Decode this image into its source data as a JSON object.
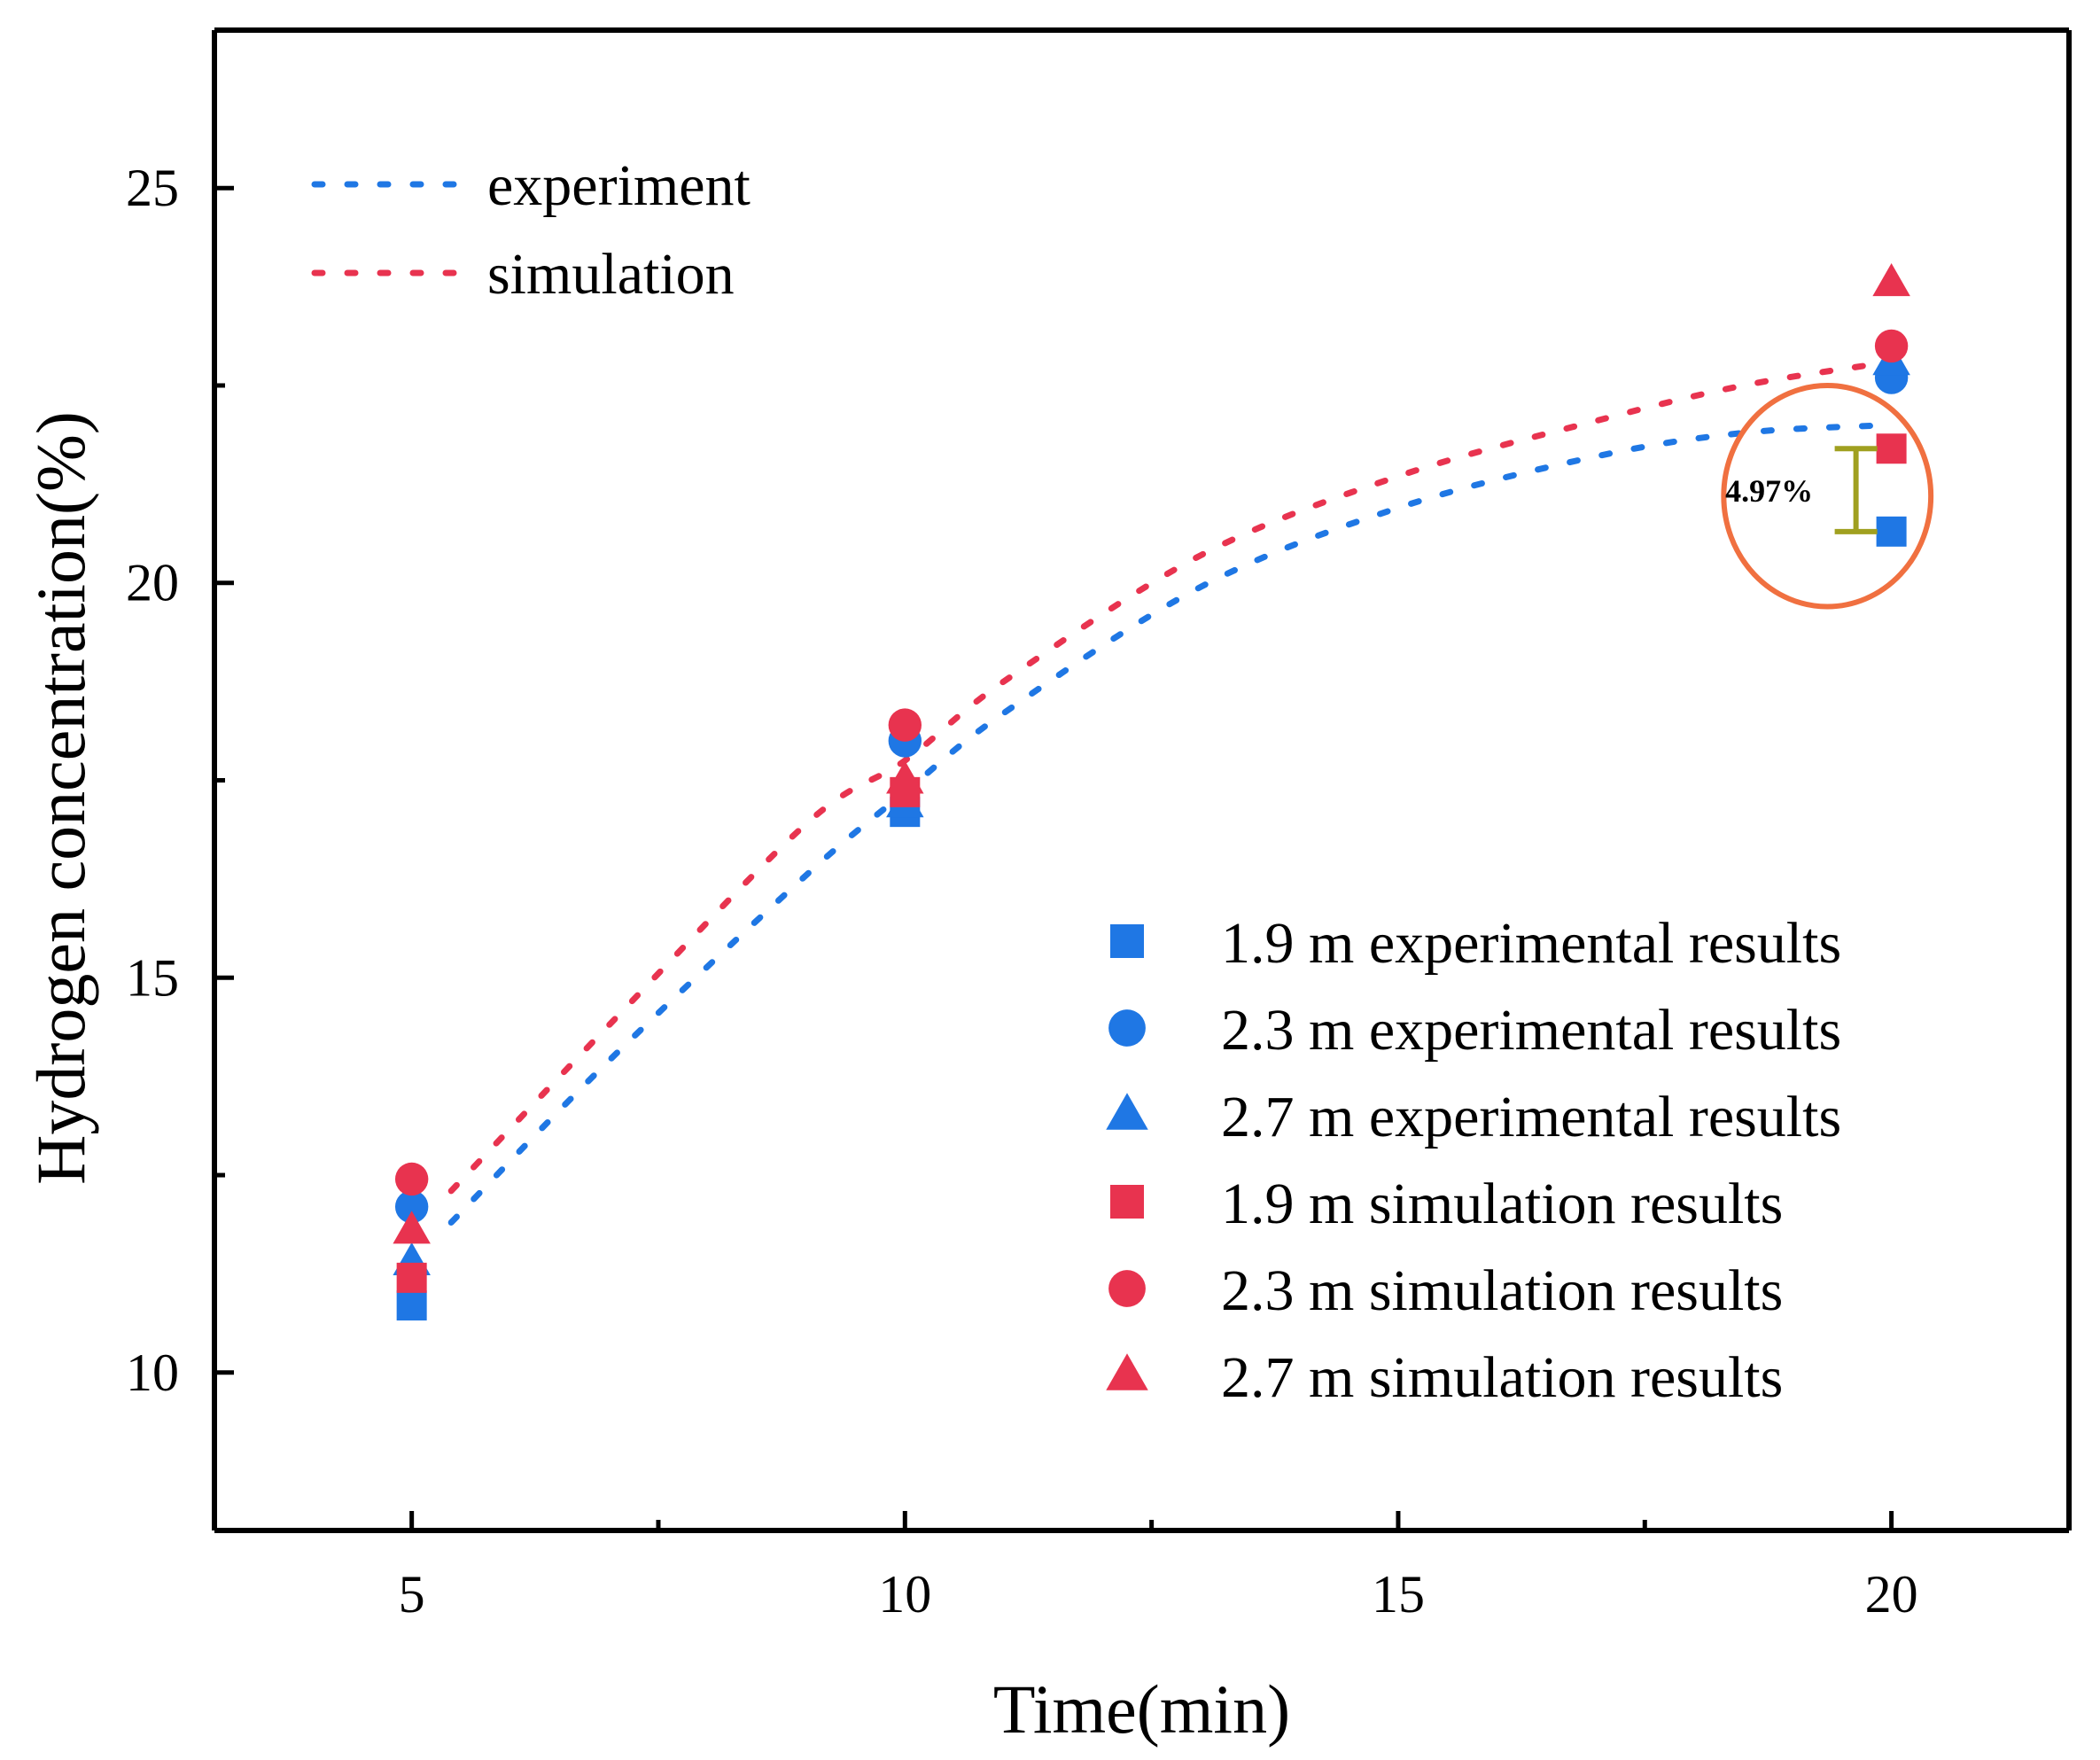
{
  "chart_data": {
    "type": "scatter",
    "xlabel": "Time(min)",
    "ylabel": "Hydrogen concentration(%)",
    "xlim": [
      3,
      21.8
    ],
    "ylim": [
      8,
      27
    ],
    "xticks": [
      5,
      10,
      15,
      20
    ],
    "xtick_labels": [
      "5",
      "10",
      "15",
      "20"
    ],
    "xminor": [
      7.5,
      12.5,
      17.5
    ],
    "yticks": [
      10,
      15,
      20,
      25
    ],
    "ytick_labels": [
      "10",
      "15",
      "20",
      "25"
    ],
    "yminor": [
      12.5,
      17.5,
      22.5
    ],
    "colors": {
      "experiment": "#1f77e4",
      "simulation": "#e8334f",
      "highlight": "#f07040",
      "bracket": "#a0a020"
    },
    "series": [
      {
        "name": "1.9 m experimental results",
        "group": "experiment",
        "marker": "square",
        "x": [
          5,
          10,
          20
        ],
        "y": [
          10.85,
          17.1,
          20.65
        ]
      },
      {
        "name": "2.3 m experimental results",
        "group": "experiment",
        "marker": "circle",
        "x": [
          5,
          10,
          20
        ],
        "y": [
          12.1,
          18.0,
          22.6
        ]
      },
      {
        "name": "2.7 m experimental results",
        "group": "experiment",
        "marker": "triangle",
        "x": [
          5,
          10,
          20
        ],
        "y": [
          11.4,
          17.2,
          22.8
        ]
      },
      {
        "name": "1.9 m simulation results",
        "group": "simulation",
        "marker": "square",
        "x": [
          5,
          10,
          20
        ],
        "y": [
          11.2,
          17.35,
          21.7
        ]
      },
      {
        "name": "2.3 m simulation results",
        "group": "simulation",
        "marker": "circle",
        "x": [
          5,
          10,
          20
        ],
        "y": [
          12.45,
          18.2,
          23.0
        ]
      },
      {
        "name": "2.7 m simulation results",
        "group": "simulation",
        "marker": "triangle",
        "x": [
          5,
          10,
          20
        ],
        "y": [
          11.8,
          17.5,
          23.8
        ]
      }
    ],
    "fit_lines": [
      {
        "name": "experiment",
        "group": "experiment",
        "x": [
          5.4,
          7,
          9,
          10,
          11,
          13,
          15,
          17,
          18.5,
          20
        ],
        "y": [
          11.9,
          13.95,
          16.3,
          17.35,
          18.35,
          19.95,
          20.95,
          21.6,
          21.9,
          22.0
        ]
      },
      {
        "name": "simulation",
        "group": "simulation",
        "x": [
          5.4,
          7,
          9,
          10,
          11,
          13,
          15,
          17,
          18.5,
          20
        ],
        "y": [
          12.3,
          14.4,
          16.95,
          17.75,
          18.75,
          20.35,
          21.35,
          22.05,
          22.5,
          22.8
        ]
      }
    ],
    "legend_lines": [
      {
        "label": "experiment",
        "group": "experiment"
      },
      {
        "label": "simulation",
        "group": "simulation"
      }
    ],
    "legend_lines_position": "top-left",
    "legend_markers_position": "bottom-right",
    "annotation": {
      "text": "4.97%",
      "x": 20,
      "y_low": 20.65,
      "y_high": 21.7,
      "ellipse_center": [
        19.35,
        21.1
      ],
      "ellipse_radii": [
        1.05,
        1.4
      ]
    }
  }
}
